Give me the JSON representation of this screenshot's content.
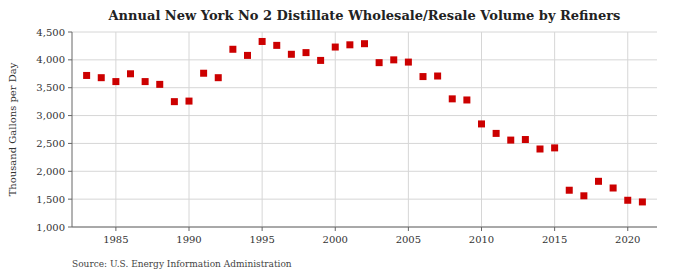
{
  "chart_data": {
    "type": "scatter",
    "title": "Annual New York No 2 Distillate Wholesale/Resale Volume by Refiners",
    "y_label": "Thousand Gallons per Day",
    "annotations": [
      "Source: U.S. Energy Information Administration"
    ],
    "x": [
      1983,
      1984,
      1985,
      1986,
      1987,
      1988,
      1989,
      1990,
      1991,
      1992,
      1993,
      1994,
      1995,
      1996,
      1997,
      1998,
      1999,
      2000,
      2001,
      2002,
      2003,
      2004,
      2005,
      2006,
      2007,
      2008,
      2009,
      2010,
      2011,
      2012,
      2013,
      2014,
      2015,
      2016,
      2017,
      2018,
      2019,
      2020,
      2021
    ],
    "values": [
      3720,
      3680,
      3610,
      3750,
      3610,
      3560,
      3250,
      3260,
      3760,
      3680,
      4190,
      4080,
      4330,
      4260,
      4100,
      4130,
      3990,
      4230,
      4270,
      4290,
      3950,
      4000,
      3960,
      3700,
      3710,
      3300,
      3280,
      2850,
      2680,
      2560,
      2570,
      2400,
      2420,
      1660,
      1560,
      1820,
      1700,
      1480,
      1450
    ],
    "color": "#cc0000",
    "marker": "square",
    "xlim": [
      1982,
      2022
    ],
    "xticks": [
      1985,
      1990,
      1995,
      2000,
      2005,
      2010,
      2015,
      2020
    ],
    "ylim": [
      1000,
      4500
    ],
    "yticks": [
      {
        "value": 1000,
        "label": "1,000"
      },
      {
        "value": 1500,
        "label": "1,500"
      },
      {
        "value": 2000,
        "label": "2,000"
      },
      {
        "value": 2500,
        "label": "2,500"
      },
      {
        "value": 3000,
        "label": "3,000"
      },
      {
        "value": 3500,
        "label": "3,500"
      },
      {
        "value": 4000,
        "label": "4,000"
      },
      {
        "value": 4500,
        "label": "4,500"
      }
    ],
    "grid": true
  }
}
